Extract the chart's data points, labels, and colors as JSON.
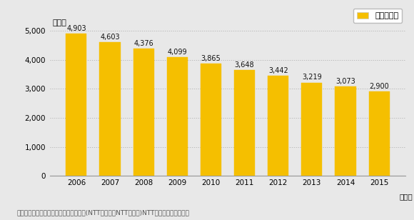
{
  "years": [
    "2006",
    "2007",
    "2008",
    "2009",
    "2010",
    "2011",
    "2012",
    "2013",
    "2014",
    "2015"
  ],
  "values": [
    4903,
    4603,
    4376,
    4099,
    3865,
    3648,
    3442,
    3219,
    3073,
    2900
  ],
  "bar_color": "#F5BF00",
  "bar_edge_color": "#F5BF00",
  "background_color": "#E8E8E8",
  "plot_bg_color": "#E8E8E8",
  "ylabel": "（件）",
  "xlabel_suffix": "（年）",
  "ylim": [
    0,
    5000
  ],
  "yticks": [
    0,
    1000,
    2000,
    3000,
    4000,
    5000
  ],
  "legend_label": "陶磁器製造",
  "legend_color": "#F5BF00",
  "footnote": "【出典】「タウンページデータベース」(NTT東日本、NTT西日本)NTTタウンページ㈱作成",
  "label_fontsize": 7.0,
  "tick_fontsize": 7.5,
  "footnote_fontsize": 6.5,
  "legend_fontsize": 8.0,
  "ylabel_fontsize": 8.0,
  "bar_width": 0.62
}
